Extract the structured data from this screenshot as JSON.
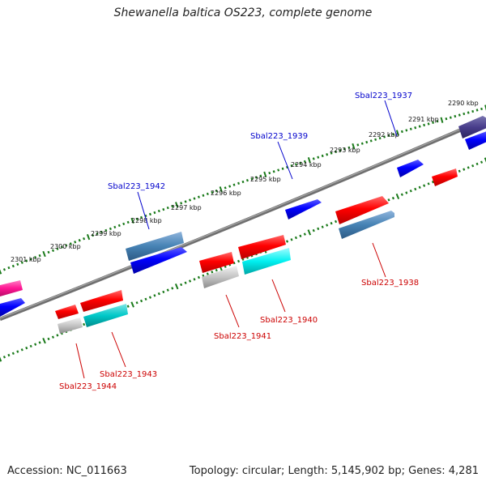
{
  "title": "Shewanella baltica OS223, complete genome",
  "footer": {
    "accession": "Accession: NC_011663",
    "stats": "Topology: circular; Length: 5,145,902 bp; Genes: 4,281"
  },
  "colors": {
    "backbone": "#808080",
    "ticks": "#1a7a1a",
    "top_label": "#0000cc",
    "bottom_label": "#cc0000"
  },
  "kbp_labels": [
    "2290 kbp",
    "2291 kbp",
    "2292 kbp",
    "2293 kbp",
    "2294 kbp",
    "2295 kbp",
    "2296 kbp",
    "2297 kbp",
    "2298 kbp",
    "2299 kbp",
    "2300 kbp",
    "2301 kbp"
  ],
  "top_genes": [
    "Sbal223_1937",
    "Sbal223_1939",
    "Sbal223_1942"
  ],
  "bottom_genes": [
    "Sbal223_1938",
    "Sbal223_1940",
    "Sbal223_1941",
    "Sbal223_1943",
    "Sbal223_1944"
  ]
}
